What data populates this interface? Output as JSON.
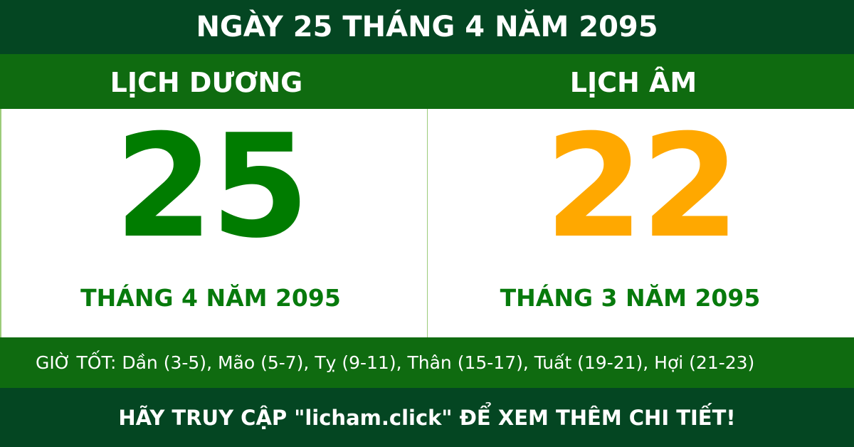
{
  "header": {
    "title": "NGÀY 25 THÁNG 4 NĂM 2095"
  },
  "solar": {
    "label": "LỊCH DƯƠNG",
    "day": "25",
    "month_year": "THÁNG 4 NĂM 2095"
  },
  "lunar": {
    "label": "LỊCH ÂM",
    "day": "22",
    "month_year": "THÁNG 3 NĂM 2095"
  },
  "good_hours": "GIỜ TỐT: Dần (3-5), Mão (5-7), Tỵ (9-11), Thân (15-17), Tuất (19-21), Hợi (21-23)",
  "footer": {
    "cta": "HÃY TRUY CẬP \"licham.click\" ĐỂ XEM THÊM CHI TIẾT!"
  },
  "colors": {
    "dark_green": "#044622",
    "green": "#0f6b10",
    "solar_day": "#007c00",
    "lunar_day": "#ffa800"
  }
}
